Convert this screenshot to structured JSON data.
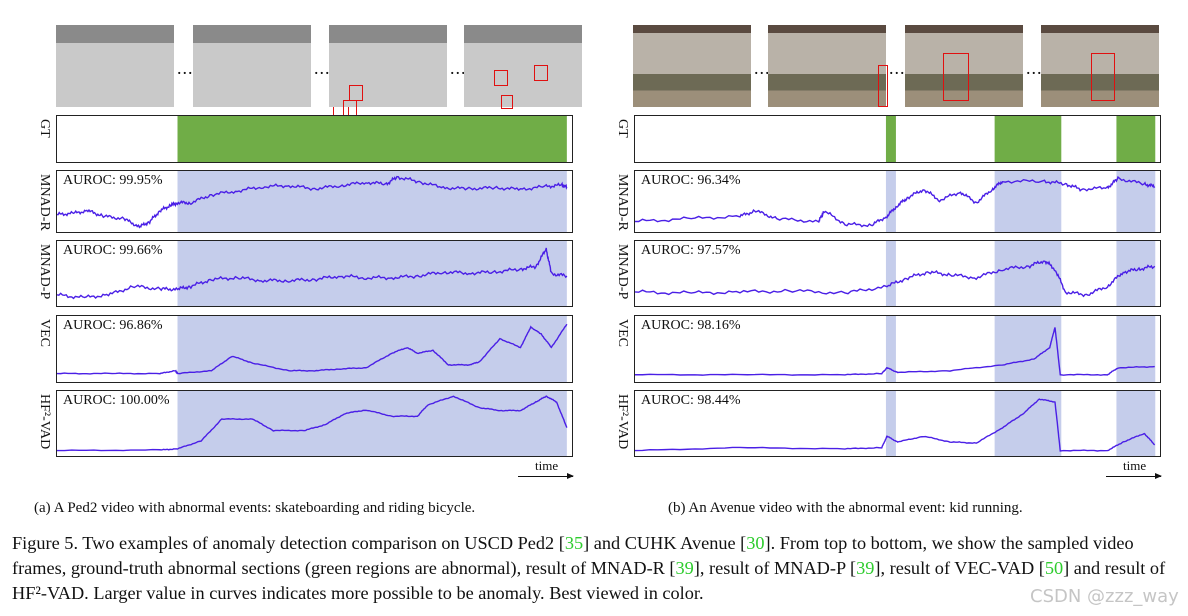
{
  "colors": {
    "gt": "#70ad47",
    "shade": "#c5cdeb",
    "curve": "#4a1fe6",
    "bbox": "#e01010",
    "ref": "#2ecc2e"
  },
  "row_labels": [
    "GT",
    "MNAD-R",
    "MNAD-P",
    "VEC",
    "HF²-VAD"
  ],
  "time_label": "time",
  "panels": [
    {
      "subcaption": "(a) A Ped2 video with abnormal events: skateboarding and riding bicycle.",
      "abnormal_sections": [
        [
          0.234,
          0.99
        ]
      ],
      "methods": [
        {
          "name": "MNAD-R",
          "auroc": "AUROC: 99.95%",
          "curve": [
            [
              0,
              0.28
            ],
            [
              0.03,
              0.3
            ],
            [
              0.06,
              0.35
            ],
            [
              0.09,
              0.25
            ],
            [
              0.13,
              0.2
            ],
            [
              0.16,
              0.05
            ],
            [
              0.18,
              0.15
            ],
            [
              0.2,
              0.35
            ],
            [
              0.22,
              0.45
            ],
            [
              0.234,
              0.5
            ],
            [
              0.26,
              0.5
            ],
            [
              0.3,
              0.65
            ],
            [
              0.35,
              0.72
            ],
            [
              0.4,
              0.8
            ],
            [
              0.45,
              0.82
            ],
            [
              0.5,
              0.76
            ],
            [
              0.55,
              0.82
            ],
            [
              0.6,
              0.88
            ],
            [
              0.64,
              0.85
            ],
            [
              0.66,
              0.98
            ],
            [
              0.7,
              0.9
            ],
            [
              0.75,
              0.78
            ],
            [
              0.8,
              0.76
            ],
            [
              0.85,
              0.78
            ],
            [
              0.9,
              0.75
            ],
            [
              0.95,
              0.8
            ],
            [
              0.98,
              0.83
            ],
            [
              0.99,
              0.79
            ]
          ]
        },
        {
          "name": "MNAD-P",
          "auroc": "AUROC: 99.66%",
          "curve": [
            [
              0,
              0.15
            ],
            [
              0.05,
              0.1
            ],
            [
              0.1,
              0.15
            ],
            [
              0.15,
              0.3
            ],
            [
              0.2,
              0.25
            ],
            [
              0.234,
              0.25
            ],
            [
              0.26,
              0.3
            ],
            [
              0.3,
              0.42
            ],
            [
              0.35,
              0.45
            ],
            [
              0.4,
              0.4
            ],
            [
              0.45,
              0.4
            ],
            [
              0.5,
              0.42
            ],
            [
              0.55,
              0.48
            ],
            [
              0.6,
              0.45
            ],
            [
              0.65,
              0.45
            ],
            [
              0.7,
              0.48
            ],
            [
              0.75,
              0.55
            ],
            [
              0.8,
              0.53
            ],
            [
              0.85,
              0.55
            ],
            [
              0.9,
              0.6
            ],
            [
              0.93,
              0.65
            ],
            [
              0.95,
              0.95
            ],
            [
              0.96,
              0.52
            ],
            [
              0.99,
              0.48
            ]
          ]
        },
        {
          "name": "VEC",
          "auroc": "AUROC: 96.86%",
          "curve": [
            [
              0,
              0.1
            ],
            [
              0.1,
              0.1
            ],
            [
              0.2,
              0.1
            ],
            [
              0.23,
              0.15
            ],
            [
              0.234,
              0.1
            ],
            [
              0.3,
              0.15
            ],
            [
              0.34,
              0.4
            ],
            [
              0.38,
              0.28
            ],
            [
              0.45,
              0.15
            ],
            [
              0.5,
              0.15
            ],
            [
              0.55,
              0.18
            ],
            [
              0.6,
              0.2
            ],
            [
              0.65,
              0.45
            ],
            [
              0.68,
              0.55
            ],
            [
              0.7,
              0.45
            ],
            [
              0.73,
              0.5
            ],
            [
              0.76,
              0.25
            ],
            [
              0.8,
              0.25
            ],
            [
              0.82,
              0.3
            ],
            [
              0.86,
              0.7
            ],
            [
              0.9,
              0.55
            ],
            [
              0.92,
              0.9
            ],
            [
              0.94,
              0.78
            ],
            [
              0.96,
              0.55
            ],
            [
              0.99,
              0.95
            ]
          ]
        },
        {
          "name": "HF²-VAD",
          "auroc": "AUROC: 100.00%",
          "curve": [
            [
              0,
              0.05
            ],
            [
              0.2,
              0.06
            ],
            [
              0.234,
              0.08
            ],
            [
              0.28,
              0.22
            ],
            [
              0.32,
              0.6
            ],
            [
              0.38,
              0.6
            ],
            [
              0.42,
              0.4
            ],
            [
              0.48,
              0.4
            ],
            [
              0.52,
              0.5
            ],
            [
              0.56,
              0.7
            ],
            [
              0.6,
              0.76
            ],
            [
              0.65,
              0.65
            ],
            [
              0.7,
              0.65
            ],
            [
              0.72,
              0.85
            ],
            [
              0.77,
              1.0
            ],
            [
              0.82,
              0.8
            ],
            [
              0.86,
              0.75
            ],
            [
              0.9,
              0.75
            ],
            [
              0.93,
              0.9
            ],
            [
              0.95,
              1.0
            ],
            [
              0.97,
              0.9
            ],
            [
              0.99,
              0.45
            ]
          ]
        }
      ]
    },
    {
      "subcaption": "(b) An Avenue video with the abnormal event: kid running.",
      "abnormal_sections": [
        [
          0.478,
          0.497
        ],
        [
          0.685,
          0.812
        ],
        [
          0.917,
          0.991
        ]
      ],
      "methods": [
        {
          "name": "MNAD-R",
          "auroc": "AUROC: 96.34%",
          "curve": [
            [
              0,
              0.15
            ],
            [
              0.1,
              0.2
            ],
            [
              0.2,
              0.25
            ],
            [
              0.23,
              0.35
            ],
            [
              0.27,
              0.2
            ],
            [
              0.35,
              0.15
            ],
            [
              0.36,
              0.35
            ],
            [
              0.4,
              0.1
            ],
            [
              0.45,
              0.08
            ],
            [
              0.48,
              0.25
            ],
            [
              0.5,
              0.45
            ],
            [
              0.52,
              0.6
            ],
            [
              0.55,
              0.75
            ],
            [
              0.58,
              0.55
            ],
            [
              0.62,
              0.7
            ],
            [
              0.65,
              0.5
            ],
            [
              0.68,
              0.75
            ],
            [
              0.7,
              0.9
            ],
            [
              0.78,
              0.9
            ],
            [
              0.82,
              0.85
            ],
            [
              0.85,
              0.75
            ],
            [
              0.9,
              0.78
            ],
            [
              0.92,
              0.95
            ],
            [
              0.97,
              0.85
            ],
            [
              0.99,
              0.8
            ]
          ]
        },
        {
          "name": "MNAD-P",
          "auroc": "AUROC: 97.57%",
          "curve": [
            [
              0,
              0.2
            ],
            [
              0.1,
              0.18
            ],
            [
              0.2,
              0.2
            ],
            [
              0.3,
              0.22
            ],
            [
              0.4,
              0.18
            ],
            [
              0.48,
              0.3
            ],
            [
              0.52,
              0.45
            ],
            [
              0.56,
              0.55
            ],
            [
              0.6,
              0.5
            ],
            [
              0.65,
              0.45
            ],
            [
              0.7,
              0.6
            ],
            [
              0.75,
              0.65
            ],
            [
              0.78,
              0.75
            ],
            [
              0.8,
              0.6
            ],
            [
              0.82,
              0.2
            ],
            [
              0.86,
              0.15
            ],
            [
              0.9,
              0.3
            ],
            [
              0.93,
              0.55
            ],
            [
              0.96,
              0.6
            ],
            [
              0.99,
              0.65
            ]
          ]
        },
        {
          "name": "VEC",
          "auroc": "AUROC: 98.16%",
          "curve": [
            [
              0,
              0.08
            ],
            [
              0.2,
              0.08
            ],
            [
              0.4,
              0.08
            ],
            [
              0.47,
              0.1
            ],
            [
              0.48,
              0.2
            ],
            [
              0.5,
              0.12
            ],
            [
              0.6,
              0.15
            ],
            [
              0.7,
              0.25
            ],
            [
              0.76,
              0.35
            ],
            [
              0.79,
              0.55
            ],
            [
              0.8,
              0.9
            ],
            [
              0.81,
              0.08
            ],
            [
              0.9,
              0.08
            ],
            [
              0.92,
              0.2
            ],
            [
              0.99,
              0.22
            ]
          ]
        },
        {
          "name": "HF²-VAD",
          "auroc": "AUROC: 98.44%",
          "curve": [
            [
              0,
              0.05
            ],
            [
              0.2,
              0.1
            ],
            [
              0.4,
              0.08
            ],
            [
              0.47,
              0.1
            ],
            [
              0.48,
              0.3
            ],
            [
              0.5,
              0.2
            ],
            [
              0.55,
              0.3
            ],
            [
              0.6,
              0.2
            ],
            [
              0.65,
              0.18
            ],
            [
              0.7,
              0.45
            ],
            [
              0.74,
              0.7
            ],
            [
              0.77,
              0.95
            ],
            [
              0.8,
              0.9
            ],
            [
              0.81,
              0.05
            ],
            [
              0.9,
              0.05
            ],
            [
              0.93,
              0.2
            ],
            [
              0.97,
              0.35
            ],
            [
              0.99,
              0.15
            ]
          ]
        }
      ]
    }
  ],
  "caption": {
    "prefix": "Figure 5. Two examples of anomaly detection comparison on USCD Ped2 [",
    "r1": "35",
    "t1": "] and CUHK Avenue [",
    "r2": "30",
    "t2": "]. From top to bottom, we show the sampled video frames, ground-truth abnormal sections (green regions are abnormal), result of MNAD-R [",
    "r3": "39",
    "t3": "], result of MNAD-P [",
    "r4": "39",
    "t4": "], result of VEC-VAD [",
    "r5": "50",
    "t5": "] and result of HF²-VAD. Larger value in curves indicates more possible to be anomaly. Best viewed in color."
  },
  "watermark": "CSDN @zzz_way"
}
